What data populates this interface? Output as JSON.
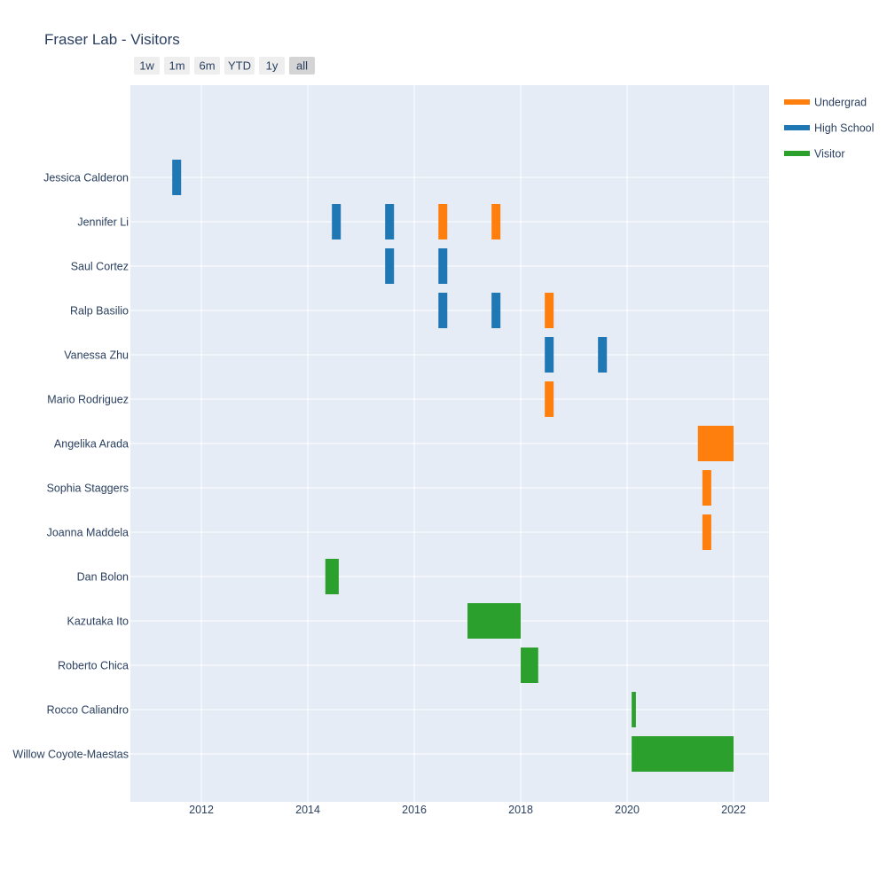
{
  "chart_data": {
    "type": "timeline",
    "title": "Fraser Lab - Visitors",
    "range_selector": [
      "1w",
      "1m",
      "6m",
      "YTD",
      "1y",
      "all"
    ],
    "active_range": "all",
    "x_ticks": [
      "2012",
      "2014",
      "2016",
      "2018",
      "2020",
      "2022"
    ],
    "x_range": [
      "2010-09-01",
      "2022-09-01"
    ],
    "grid": true,
    "legend_position": "top-right",
    "people": [
      "Jessica Calderon",
      "Jennifer Li",
      "Saul Cortez",
      "Ralp Basilio",
      "Vanessa Zhu",
      "Mario Rodriguez",
      "Angelika Arada",
      "Sophia Staggers",
      "Joanna Maddela",
      "Dan Bolon",
      "Kazutaka Ito",
      "Roberto Chica",
      "Rocco Caliandro",
      "Willow Coyote-Maestas"
    ],
    "series": [
      {
        "name": "Undergrad",
        "color": "#ff7f0e",
        "visits": [
          {
            "person": "Jennifer Li",
            "start": "2016-06-15",
            "end": "2016-08-15"
          },
          {
            "person": "Jennifer Li",
            "start": "2017-06-15",
            "end": "2017-08-15"
          },
          {
            "person": "Ralp Basilio",
            "start": "2018-06-15",
            "end": "2018-08-15"
          },
          {
            "person": "Mario Rodriguez",
            "start": "2018-06-15",
            "end": "2018-08-15"
          },
          {
            "person": "Angelika Arada",
            "start": "2021-05-01",
            "end": "2022-01-01"
          },
          {
            "person": "Sophia Staggers",
            "start": "2021-06-01",
            "end": "2021-08-01"
          },
          {
            "person": "Joanna Maddela",
            "start": "2021-06-01",
            "end": "2021-08-01"
          }
        ]
      },
      {
        "name": "High School",
        "color": "#1f77b4",
        "visits": [
          {
            "person": "Jessica Calderon",
            "start": "2011-06-15",
            "end": "2011-08-15"
          },
          {
            "person": "Jennifer Li",
            "start": "2014-06-15",
            "end": "2014-08-15"
          },
          {
            "person": "Jennifer Li",
            "start": "2015-06-15",
            "end": "2015-08-15"
          },
          {
            "person": "Saul Cortez",
            "start": "2015-06-15",
            "end": "2015-08-15"
          },
          {
            "person": "Saul Cortez",
            "start": "2016-06-15",
            "end": "2016-08-15"
          },
          {
            "person": "Ralp Basilio",
            "start": "2016-06-15",
            "end": "2016-08-15"
          },
          {
            "person": "Ralp Basilio",
            "start": "2017-06-15",
            "end": "2017-08-15"
          },
          {
            "person": "Vanessa Zhu",
            "start": "2018-06-15",
            "end": "2018-08-15"
          },
          {
            "person": "Vanessa Zhu",
            "start": "2019-06-15",
            "end": "2019-08-15"
          }
        ]
      },
      {
        "name": "Visitor",
        "color": "#2ca02c",
        "visits": [
          {
            "person": "Dan Bolon",
            "start": "2014-05-01",
            "end": "2014-08-01"
          },
          {
            "person": "Kazutaka Ito",
            "start": "2017-01-01",
            "end": "2018-01-01"
          },
          {
            "person": "Roberto Chica",
            "start": "2018-01-01",
            "end": "2018-05-01"
          },
          {
            "person": "Rocco Caliandro",
            "start": "2020-02-01",
            "end": "2020-03-01"
          },
          {
            "person": "Willow Coyote-Maestas",
            "start": "2020-02-01",
            "end": "2022-01-01"
          }
        ]
      }
    ]
  }
}
